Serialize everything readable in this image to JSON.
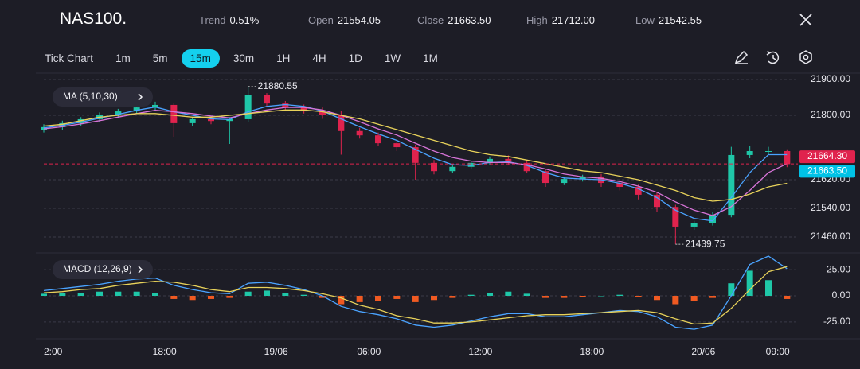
{
  "header": {
    "symbol": "NAS100.",
    "stats": [
      {
        "label": "Trend",
        "value": "0.51%"
      },
      {
        "label": "Open",
        "value": "21554.05"
      },
      {
        "label": "Close",
        "value": "21663.50"
      },
      {
        "label": "High",
        "value": "21712.00"
      },
      {
        "label": "Low",
        "value": "21542.55"
      }
    ]
  },
  "toolbar": {
    "items": [
      "Tick Chart",
      "1m",
      "5m",
      "15m",
      "30m",
      "1H",
      "4H",
      "1D",
      "1W",
      "1M"
    ],
    "active": "15m"
  },
  "chart_data": [
    {
      "type": "candlestick",
      "indicator": "MA (5,10,30)",
      "up_color": "#1fc7a8",
      "down_color": "#e0234e",
      "x": [
        0,
        4,
        8,
        12,
        16,
        20,
        24,
        28,
        32,
        36,
        40,
        44,
        48,
        52,
        56,
        60,
        64,
        68,
        72,
        76,
        80,
        84,
        88,
        92,
        96,
        100,
        104,
        108,
        112,
        116,
        120,
        124,
        128,
        132,
        136,
        140,
        144,
        148,
        152,
        156,
        160
      ],
      "open": [
        21760,
        21767,
        21778,
        21789,
        21800,
        21811,
        21822,
        21829,
        21778,
        21789,
        21784,
        21789,
        21856,
        21833,
        21822,
        21811,
        21800,
        21756,
        21744,
        21722,
        21711,
        21667,
        21644,
        21656,
        21667,
        21678,
        21667,
        21644,
        21611,
        21622,
        21629,
        21611,
        21600,
        21578,
        21544,
        21489,
        21500,
        21522,
        21689,
        21700,
        21700
      ],
      "high": [
        21775,
        21785,
        21795,
        21808,
        21818,
        21830,
        21838,
        21835,
        21795,
        21798,
        21795,
        21880.55,
        21862,
        21840,
        21830,
        21822,
        21812,
        21765,
        21752,
        21730,
        21718,
        21675,
        21662,
        21672,
        21685,
        21688,
        21672,
        21650,
        21628,
        21634,
        21636,
        21618,
        21606,
        21585,
        21550,
        21505,
        21530,
        21712,
        21715,
        21712,
        21705
      ],
      "low": [
        21752,
        21760,
        21770,
        21782,
        21794,
        21805,
        21815,
        21740,
        21770,
        21775,
        21720,
        21782,
        21825,
        21815,
        21805,
        21790,
        21690,
        21735,
        21715,
        21700,
        21620,
        21635,
        21640,
        21650,
        21660,
        21660,
        21638,
        21600,
        21605,
        21615,
        21600,
        21590,
        21565,
        21530,
        21439.75,
        21480,
        21492,
        21515,
        21680,
        21690,
        21655
      ],
      "close": [
        21767,
        21778,
        21789,
        21800,
        21811,
        21822,
        21829,
        21778,
        21789,
        21784,
        21789,
        21856,
        21833,
        21822,
        21811,
        21800,
        21756,
        21744,
        21722,
        21711,
        21667,
        21644,
        21656,
        21667,
        21678,
        21667,
        21644,
        21611,
        21622,
        21629,
        21611,
        21600,
        21578,
        21544,
        21489,
        21500,
        21522,
        21689,
        21700,
        21700,
        21663.5
      ],
      "series": [
        {
          "color": "#4aa3ff",
          "values": [
            21765,
            21772,
            21781,
            21792,
            21803,
            21814,
            21823,
            21810,
            21800,
            21790,
            21788,
            21810,
            21825,
            21830,
            21825,
            21812,
            21790,
            21768,
            21748,
            21730,
            21705,
            21680,
            21662,
            21660,
            21668,
            21670,
            21660,
            21640,
            21625,
            21622,
            21620,
            21610,
            21595,
            21570,
            21535,
            21512,
            21505,
            21570,
            21640,
            21690,
            21690
          ]
        },
        {
          "color": "#d774d8",
          "values": [
            21762,
            21768,
            21776,
            21785,
            21795,
            21805,
            21814,
            21810,
            21805,
            21798,
            21793,
            21805,
            21815,
            21822,
            21822,
            21815,
            21800,
            21782,
            21762,
            21745,
            21722,
            21700,
            21682,
            21672,
            21668,
            21668,
            21662,
            21650,
            21636,
            21628,
            21624,
            21615,
            21602,
            21585,
            21558,
            21535,
            21520,
            21545,
            21590,
            21640,
            21665
          ]
        },
        {
          "color": "#e8d25a",
          "values": [
            21770,
            21775,
            21785,
            21795,
            21800,
            21805,
            21805,
            21800,
            21795,
            21795,
            21800,
            21805,
            21810,
            21815,
            21815,
            21810,
            21800,
            21790,
            21775,
            21760,
            21745,
            21730,
            21715,
            21700,
            21690,
            21685,
            21675,
            21665,
            21655,
            21645,
            21640,
            21630,
            21620,
            21605,
            21590,
            21570,
            21560,
            21565,
            21580,
            21600,
            21610
          ]
        }
      ],
      "xlim": [
        0,
        162
      ],
      "ylim": [
        21420,
        21920
      ],
      "yticks": [
        {
          "value": 21460,
          "label": "21460.00"
        },
        {
          "value": 21540,
          "label": "21540.00"
        },
        {
          "value": 21620,
          "label": "21620.00"
        },
        {
          "value": 21800,
          "label": "21800.00"
        },
        {
          "value": 21900,
          "label": "21900.00"
        }
      ],
      "grid": true,
      "price_tags": [
        {
          "value": 21664.3,
          "label": "21664.30",
          "color": "#e0234e"
        },
        {
          "value": 21663.5,
          "label": "21663.50",
          "color": "#00c2e6"
        }
      ]
    },
    {
      "type": "macd",
      "indicator": "MACD (12,26,9)",
      "up_color": "#1fc7a8",
      "down_color": "#f05a22",
      "x": [
        0,
        4,
        8,
        12,
        16,
        20,
        24,
        28,
        32,
        36,
        40,
        44,
        48,
        52,
        56,
        60,
        64,
        68,
        72,
        76,
        80,
        84,
        88,
        92,
        96,
        100,
        104,
        108,
        112,
        116,
        120,
        124,
        128,
        132,
        136,
        140,
        144,
        148,
        152,
        156,
        160
      ],
      "histogram": [
        2,
        3,
        3,
        4,
        4,
        4,
        3,
        -3,
        -4,
        -3,
        -2,
        4,
        5,
        3,
        1,
        -2,
        -8,
        -6,
        -5,
        -3,
        -6,
        -4,
        -2,
        1,
        3,
        4,
        2,
        -2,
        -2,
        -1,
        0,
        1,
        -1,
        -4,
        -8,
        -5,
        -2,
        12,
        24,
        15,
        -3
      ],
      "series": [
        {
          "color": "#4aa3ff",
          "values": [
            5,
            7,
            9,
            11,
            14,
            16,
            17,
            10,
            6,
            3,
            2,
            12,
            13,
            10,
            6,
            0,
            -10,
            -15,
            -18,
            -22,
            -28,
            -30,
            -28,
            -24,
            -20,
            -17,
            -17,
            -20,
            -20,
            -18,
            -16,
            -14,
            -15,
            -20,
            -30,
            -32,
            -28,
            0,
            30,
            38,
            26
          ]
        },
        {
          "color": "#e8d25a",
          "values": [
            3,
            4,
            6,
            7,
            10,
            12,
            14,
            13,
            10,
            6,
            4,
            8,
            8,
            7,
            5,
            2,
            -2,
            -9,
            -13,
            -19,
            -22,
            -26,
            -26,
            -25,
            -23,
            -21,
            -19,
            -18,
            -18,
            -17,
            -16,
            -15,
            -14,
            -16,
            -22,
            -27,
            -26,
            -12,
            6,
            23,
            28
          ]
        }
      ],
      "xlim": [
        0,
        162
      ],
      "ylim": [
        -38,
        38
      ],
      "yticks": [
        {
          "value": -25,
          "label": "-25.00"
        },
        {
          "value": 0,
          "label": "0.00"
        },
        {
          "value": 25,
          "label": "25.00"
        }
      ],
      "grid": true,
      "xticks": [
        {
          "value": 2,
          "label": "2:00"
        },
        {
          "value": 26,
          "label": "18:00"
        },
        {
          "value": 50,
          "label": "19/06"
        },
        {
          "value": 70,
          "label": "06:00"
        },
        {
          "value": 94,
          "label": "12:00"
        },
        {
          "value": 118,
          "label": "18:00"
        },
        {
          "value": 142,
          "label": "20/06"
        },
        {
          "value": 158,
          "label": "09:00"
        }
      ]
    }
  ]
}
